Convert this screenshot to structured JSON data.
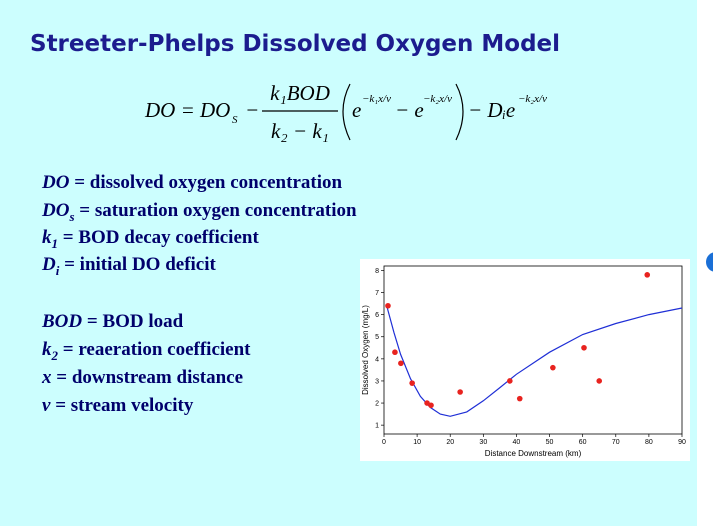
{
  "title": "Streeter-Phelps Dissolved Oxygen Model",
  "equation": {
    "lhs": "DO = DO",
    "lhs_sub": "S",
    "minus": "−",
    "numerator": "k₁BOD",
    "denominator": "k₂ − k₁",
    "e1": "e",
    "exp1": "−k₁x/v",
    "e2": "− e",
    "exp2": "−k₂x/v",
    "tail": "− Dᵢe",
    "exp3": "−k₂x/v"
  },
  "definitions": [
    {
      "symbol": "DO",
      "text": " = dissolved oxygen concentration"
    },
    {
      "symbol": "DO",
      "sub": "s",
      "text": " = saturation oxygen concentration"
    },
    {
      "symbol": "k",
      "sub": "1",
      "text": " = BOD decay coefficient"
    },
    {
      "symbol": "D",
      "sub": "i",
      "text": " = initial DO deficit"
    },
    {
      "symbol": "BOD",
      "text": " = BOD load"
    },
    {
      "symbol": "k",
      "sub": "2",
      "text": " = reaeration coefficient"
    },
    {
      "symbol": "x",
      "text": " = downstream distance"
    },
    {
      "symbol": "v",
      "text": " = stream velocity"
    }
  ],
  "chart_data": {
    "type": "scatter",
    "x_label": "Distance Downstream (km)",
    "y_label": "Dissolved Oxygen (mg/L)",
    "xlim": [
      0,
      90
    ],
    "xticks": [
      0,
      10,
      20,
      30,
      40,
      50,
      60,
      70,
      80,
      90
    ],
    "ylim": [
      0.6,
      8.2
    ],
    "yticks": [
      1,
      2,
      3,
      4,
      5,
      6,
      7,
      8
    ],
    "points": {
      "color": "#e8231f",
      "x": [
        1.2,
        3.3,
        5.1,
        8.5,
        13,
        14.2,
        23,
        38,
        41,
        51,
        60.4,
        65,
        79.5
      ],
      "values": [
        6.4,
        4.3,
        3.8,
        2.9,
        2.0,
        1.9,
        2.5,
        3.0,
        2.2,
        3.6,
        4.5,
        3.0,
        7.8
      ]
    },
    "curve": {
      "color": "#1f2fd6",
      "x": [
        1,
        3,
        5,
        8,
        11,
        14,
        17,
        20,
        25,
        30,
        35,
        40,
        45,
        50,
        60,
        70,
        80,
        90
      ],
      "values": [
        6.3,
        5.2,
        4.2,
        3.1,
        2.3,
        1.8,
        1.5,
        1.4,
        1.6,
        2.1,
        2.7,
        3.3,
        3.8,
        4.3,
        5.1,
        5.6,
        6.0,
        6.3
      ]
    }
  }
}
